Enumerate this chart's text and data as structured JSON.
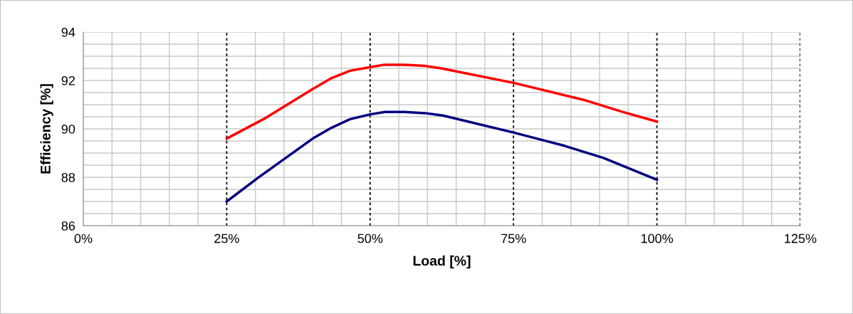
{
  "chart_data": {
    "type": "line",
    "xlabel": "Load [%]",
    "ylabel": "Efficiency [%]",
    "series": [
      {
        "color": "#ff0000",
        "x": [
          25,
          31.4,
          40,
          43.3,
          46.5,
          50,
          52.5,
          56,
          59.6,
          62.4,
          75,
          87.2,
          94,
          100
        ],
        "values": [
          89.6,
          90.4,
          91.65,
          92.1,
          92.4,
          92.55,
          92.65,
          92.65,
          92.6,
          92.5,
          91.9,
          91.2,
          90.7,
          90.3
        ]
      },
      {
        "color": "#000080",
        "x": [
          25,
          30.3,
          40,
          43.3,
          46.5,
          50,
          52.6,
          56,
          59.6,
          62.7,
          75,
          83.9,
          90.7,
          100
        ],
        "values": [
          87.0,
          87.95,
          89.6,
          90.05,
          90.4,
          90.6,
          90.7,
          90.7,
          90.65,
          90.55,
          89.85,
          89.3,
          88.8,
          87.9
        ]
      }
    ],
    "xlim": [
      0,
      125
    ],
    "xticks": [
      {
        "value": 0,
        "label": "0%"
      },
      {
        "value": 5,
        "label": null
      },
      {
        "value": 10,
        "label": null
      },
      {
        "value": 15,
        "label": null
      },
      {
        "value": 20,
        "label": null
      },
      {
        "value": 25,
        "label": "25%"
      },
      {
        "value": 30,
        "label": null
      },
      {
        "value": 35,
        "label": null
      },
      {
        "value": 40,
        "label": null
      },
      {
        "value": 45,
        "label": null
      },
      {
        "value": 50,
        "label": "50%"
      },
      {
        "value": 55,
        "label": null
      },
      {
        "value": 60,
        "label": null
      },
      {
        "value": 65,
        "label": null
      },
      {
        "value": 70,
        "label": null
      },
      {
        "value": 75,
        "label": "75%"
      },
      {
        "value": 80,
        "label": null
      },
      {
        "value": 85,
        "label": null
      },
      {
        "value": 90,
        "label": null
      },
      {
        "value": 95,
        "label": null
      },
      {
        "value": 100,
        "label": "100%"
      },
      {
        "value": 105,
        "label": null
      },
      {
        "value": 110,
        "label": null
      },
      {
        "value": 115,
        "label": null
      },
      {
        "value": 120,
        "label": null
      },
      {
        "value": 125,
        "label": "125%"
      }
    ],
    "ylim": [
      86,
      94
    ],
    "yticks": [
      86,
      {
        "value": 86.5,
        "label": null
      },
      {
        "value": 87,
        "label": null
      },
      {
        "value": 87.5,
        "label": null
      },
      88,
      {
        "value": 88.5,
        "label": null
      },
      {
        "value": 89,
        "label": null
      },
      {
        "value": 89.5,
        "label": null
      },
      90,
      {
        "value": 90.5,
        "label": null
      },
      {
        "value": 91,
        "label": null
      },
      {
        "value": 91.5,
        "label": null
      },
      92,
      {
        "value": 92.5,
        "label": null
      },
      {
        "value": 93,
        "label": null
      },
      {
        "value": 93.5,
        "label": null
      },
      94
    ],
    "grid": true,
    "marker": "none",
    "line_style": "solid",
    "legend": false
  }
}
